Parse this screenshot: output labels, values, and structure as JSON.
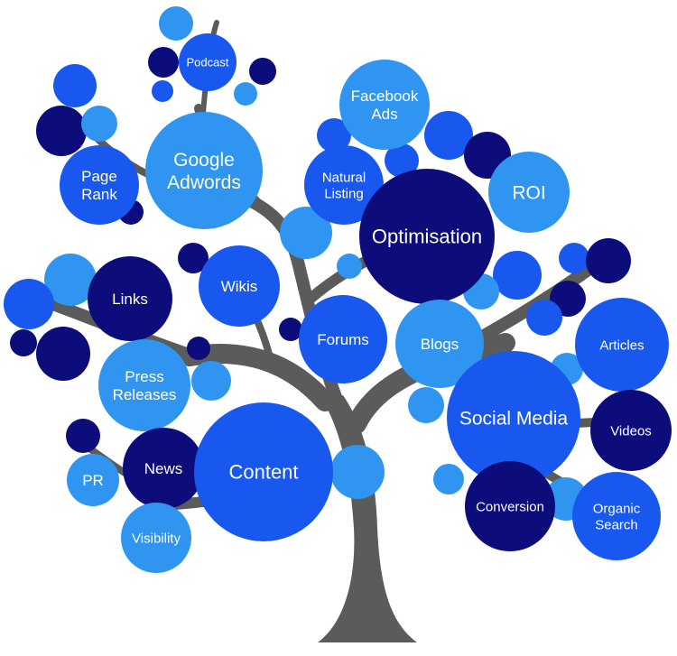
{
  "colors": {
    "trunk": "#5b5b5b",
    "light": "#2f95f0",
    "medium": "#1858ee",
    "dark": "#0c0c7a",
    "text": "#ffffff"
  },
  "nodes": [
    {
      "id": "podcast",
      "label": "Podcast",
      "tone": "medium"
    },
    {
      "id": "google-adwords",
      "label": "Google Adwords",
      "tone": "light"
    },
    {
      "id": "page-rank",
      "label": "Page Rank",
      "tone": "medium"
    },
    {
      "id": "facebook-ads",
      "label": "Facebook Ads",
      "tone": "light"
    },
    {
      "id": "natural-listing",
      "label": "Natural Listing",
      "tone": "medium"
    },
    {
      "id": "optimisation",
      "label": "Optimisation",
      "tone": "dark"
    },
    {
      "id": "roi",
      "label": "ROI",
      "tone": "light"
    },
    {
      "id": "links",
      "label": "Links",
      "tone": "dark"
    },
    {
      "id": "wikis",
      "label": "Wikis",
      "tone": "medium"
    },
    {
      "id": "forums",
      "label": "Forums",
      "tone": "medium"
    },
    {
      "id": "blogs",
      "label": "Blogs",
      "tone": "light"
    },
    {
      "id": "press-releases",
      "label": "Press Releases",
      "tone": "light"
    },
    {
      "id": "articles",
      "label": "Articles",
      "tone": "medium"
    },
    {
      "id": "social-media",
      "label": "Social Media",
      "tone": "medium"
    },
    {
      "id": "videos",
      "label": "Videos",
      "tone": "dark"
    },
    {
      "id": "news",
      "label": "News",
      "tone": "dark"
    },
    {
      "id": "content",
      "label": "Content",
      "tone": "medium"
    },
    {
      "id": "pr",
      "label": "PR",
      "tone": "light"
    },
    {
      "id": "conversion",
      "label": "Conversion",
      "tone": "dark"
    },
    {
      "id": "organic-search",
      "label": "Organic Search",
      "tone": "medium"
    },
    {
      "id": "visibility",
      "label": "Visibility",
      "tone": "light"
    }
  ]
}
